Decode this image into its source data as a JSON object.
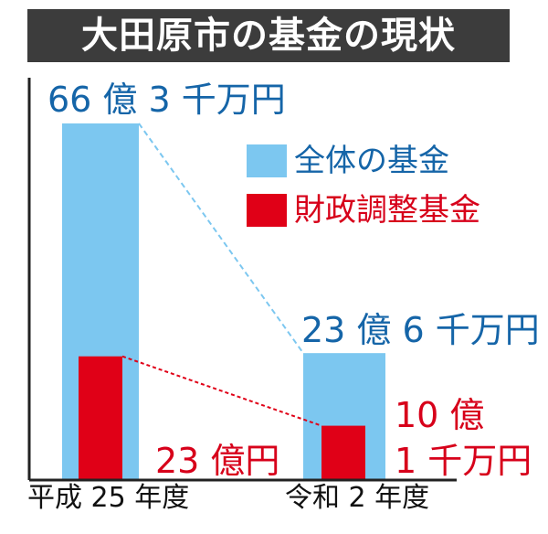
{
  "title": "大田原市の基金の現状",
  "colors": {
    "total": "#7cc7f0",
    "adjust": "#e00017",
    "total_text": "#1565a8",
    "adjust_text": "#d7001a",
    "axis": "#222222"
  },
  "chart_data": {
    "type": "bar",
    "title": "大田原市の基金の現状",
    "unit": "億円",
    "categories": [
      "平成 25 年度",
      "令和 2 年度"
    ],
    "series": [
      {
        "name": "全体の基金",
        "values": [
          66.3,
          23.6
        ]
      },
      {
        "name": "財政調整基金",
        "values": [
          23.0,
          10.1
        ]
      }
    ],
    "data_labels": {
      "total": [
        "66 億 3 千万円",
        "23 億 6 千万円"
      ],
      "adjust": [
        "23 億円"
      ],
      "adjust_r2_line1": "10 億",
      "adjust_r2_line2": "1 千万円"
    },
    "legend": {
      "position": "top-right"
    },
    "ylim": [
      0,
      70
    ],
    "grid": false
  }
}
